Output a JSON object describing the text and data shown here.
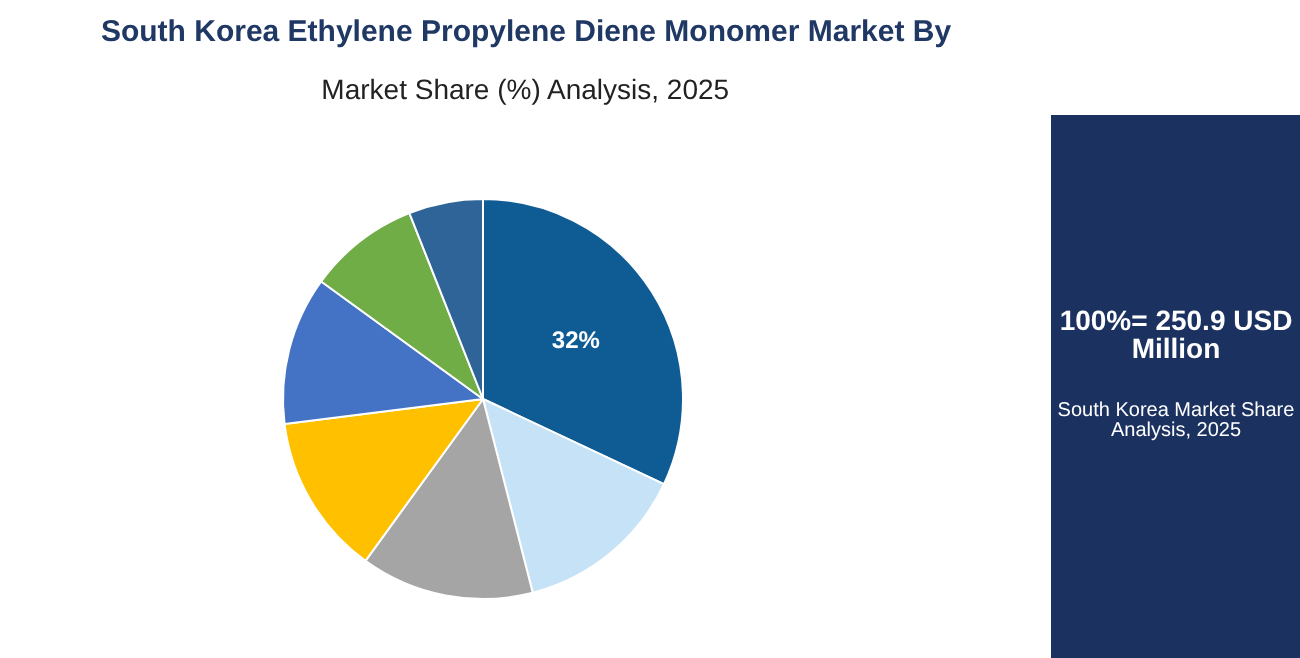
{
  "chart_data": {
    "type": "pie",
    "title": "South Korea Ethylene Propylene Diene Monomer Market By",
    "subtitle": "Market Share (%) Analysis, 2025",
    "categories": [
      null,
      null,
      null,
      null,
      null,
      null,
      null
    ],
    "values": [
      32,
      14,
      14,
      13,
      12,
      9,
      6
    ],
    "colors": [
      "#0f5c94",
      "#c6e2f6",
      "#a5a5a5",
      "#ffc000",
      "#4472c4",
      "#70ad47",
      "#2e6497"
    ],
    "value_labels": [
      "32%",
      null,
      null,
      null,
      null,
      null,
      null
    ],
    "annotations": [
      "100%= 250.9 USD Million",
      "South Korea Market Share Analysis, 2025"
    ]
  }
}
